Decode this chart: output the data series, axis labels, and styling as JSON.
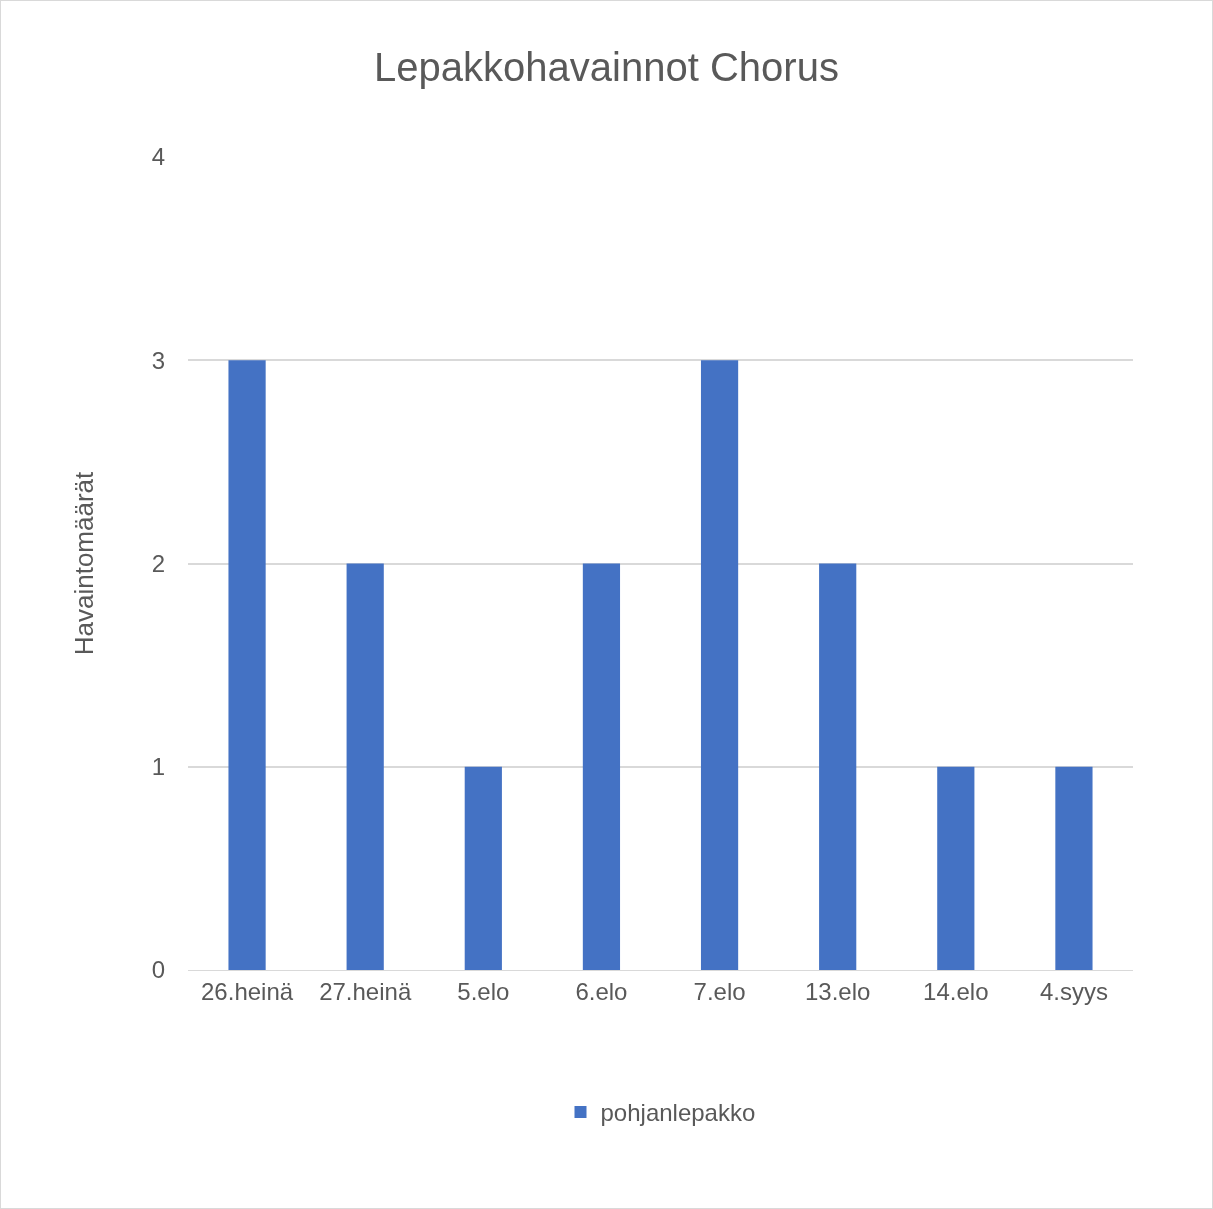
{
  "chart_data": {
    "type": "bar",
    "title": "Lepakkohavainnot Chorus",
    "ylabel": "Havaintomäärät",
    "categories": [
      "26.heinä",
      "27.heinä",
      "5.elo",
      "6.elo",
      "7.elo",
      "13.elo",
      "14.elo",
      "4.syys"
    ],
    "series": [
      {
        "name": "pohjanlepakko",
        "color": "#4472c4",
        "values": [
          3,
          2,
          1,
          2,
          3,
          2,
          1,
          1
        ]
      }
    ],
    "ylim": [
      0,
      4
    ],
    "yticks": [
      0,
      1,
      2,
      3,
      4
    ],
    "grid": "y",
    "legend": "bottom"
  }
}
